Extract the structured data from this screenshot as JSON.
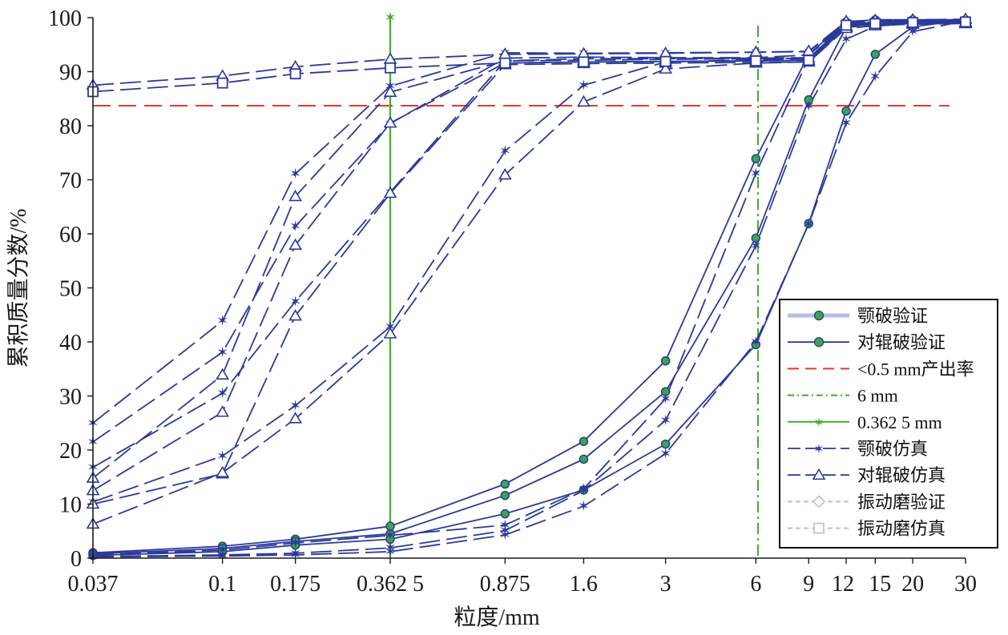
{
  "chart_data": {
    "type": "line",
    "xlabel": "粒度/mm",
    "ylabel": "累积质量分数/%",
    "x_scale": "log",
    "xlim": [
      0.037,
      30
    ],
    "ylim": [
      0,
      100
    ],
    "x_ticks": [
      0.037,
      0.1,
      0.175,
      0.3625,
      0.875,
      1.6,
      3,
      6,
      9,
      12,
      15,
      20,
      30
    ],
    "x_tick_labels": [
      "0.037",
      "0.1",
      "0.175",
      "0.362 5",
      "0.875",
      "1.6",
      "3",
      "6",
      "9",
      "12",
      "15",
      "20",
      "30"
    ],
    "y_ticks": [
      0,
      10,
      20,
      30,
      40,
      50,
      60,
      70,
      80,
      90,
      100
    ],
    "y_tick_labels": [
      "0",
      "10",
      "20",
      "30",
      "40",
      "50",
      "60",
      "70",
      "80",
      "90",
      "100"
    ],
    "legend_position": "bottom-right",
    "legend": [
      "颚破验证",
      "对辊破验证",
      "<0.5 mm产出率",
      "6 mm",
      "0.362 5 mm",
      "颚破仿真",
      "对辊破仿真",
      "振动磨验证",
      "振动磨仿真"
    ],
    "colors": {
      "series": "#2b3a9a",
      "ref_red": "#e8392b",
      "ref_green": "#3fae2a",
      "marker_green": "#3aa846",
      "legend_light": "#b7bde6"
    },
    "reference_lines": [
      {
        "legend": "<0.5 mm产出率",
        "orientation": "horizontal",
        "value": 83.7
      },
      {
        "legend": "6 mm",
        "orientation": "vertical",
        "value": 6.1
      },
      {
        "legend": "0.362 5 mm",
        "orientation": "vertical",
        "value": 0.3625
      }
    ],
    "series": [
      {
        "legend": "颚破验证",
        "dash": "solid",
        "marker": "dot",
        "x": [
          0.037,
          0.1,
          0.175,
          0.3625,
          0.875,
          1.6,
          3,
          6,
          9,
          12,
          15,
          20,
          30
        ],
        "y": [
          1,
          2.2,
          3.5,
          5.9,
          13.7,
          21.6,
          36.5,
          73.9,
          93.2,
          99.2,
          99.6,
          99.6,
          99.6
        ]
      },
      {
        "legend": "对辊破验证",
        "dash": "solid",
        "marker": "dot",
        "x": [
          0.037,
          0.1,
          0.175,
          0.3625,
          0.875,
          1.6,
          3,
          6,
          9,
          12,
          15,
          20,
          30
        ],
        "y": [
          0.8,
          1.8,
          3.1,
          4.5,
          11.6,
          18.3,
          30.8,
          59.2,
          84.8,
          98.2,
          99.2,
          99.4,
          99.6
        ]
      },
      {
        "legend": "对辊破验证",
        "dash": "solid",
        "marker": "dot",
        "x": [
          0.037,
          0.1,
          0.175,
          0.3625,
          0.875,
          1.6,
          3,
          6,
          9,
          12,
          15,
          20,
          30
        ],
        "y": [
          0.5,
          1.2,
          2.4,
          3.5,
          8.2,
          12.6,
          21.1,
          39.5,
          61.9,
          82.7,
          93.2,
          98.3,
          99.6
        ]
      },
      {
        "legend": "颚破仿真",
        "dash": "long-dash",
        "marker": "star",
        "x": [
          0.037,
          0.1,
          0.175,
          0.3625,
          0.875,
          1.6,
          3,
          6,
          9,
          12,
          15,
          20,
          30
        ],
        "y": [
          0.6,
          1.5,
          2.8,
          4.2,
          6.1,
          12.8,
          29.5,
          71.2,
          92.5,
          98.8,
          99.2,
          99.5,
          99.5
        ]
      },
      {
        "legend": "颚破仿真",
        "dash": "long-dash",
        "marker": "star",
        "x": [
          0.037,
          0.1,
          0.175,
          0.3625,
          0.875,
          1.6,
          3,
          6,
          9,
          12,
          15,
          20,
          30
        ],
        "y": [
          0.3,
          0.6,
          0.9,
          1.9,
          5.1,
          12.5,
          25.5,
          57.8,
          83.6,
          96.0,
          98.4,
          99.0,
          99.5
        ]
      },
      {
        "legend": "颚破仿真",
        "dash": "long-dash",
        "marker": "star",
        "x": [
          0.037,
          0.1,
          0.175,
          0.3625,
          0.875,
          1.6,
          3,
          6,
          9,
          12,
          15,
          20,
          30
        ],
        "y": [
          0.2,
          0.4,
          0.6,
          1.2,
          4.3,
          9.6,
          19.3,
          40.0,
          61.8,
          80.5,
          89.1,
          97.4,
          99.4
        ]
      },
      {
        "legend": "颚破仿真",
        "dash": "long-dash",
        "marker": "star",
        "x": [
          0.037,
          0.1,
          0.175,
          0.3625,
          0.875,
          1.6,
          3,
          6,
          9,
          12,
          15,
          20,
          30
        ],
        "y": [
          25.0,
          43.9,
          71.1,
          87.3,
          93.5,
          93.4,
          93.5,
          93.6,
          93.7,
          99.1,
          99.4,
          99.5,
          99.6
        ]
      },
      {
        "legend": "颚破仿真",
        "dash": "long-dash",
        "marker": "star",
        "x": [
          0.037,
          0.1,
          0.175,
          0.3625,
          0.875,
          1.6,
          3,
          6,
          9,
          12,
          15,
          20,
          30
        ],
        "y": [
          21.5,
          38.1,
          61.4,
          80.4,
          92.5,
          92.7,
          92.6,
          92.6,
          93.1,
          98.9,
          99.3,
          99.4,
          99.5
        ]
      },
      {
        "legend": "颚破仿真",
        "dash": "long-dash",
        "marker": "star",
        "x": [
          0.037,
          0.1,
          0.175,
          0.3625,
          0.875,
          1.6,
          3,
          6,
          9,
          12,
          15,
          20,
          30
        ],
        "y": [
          16.8,
          30.5,
          47.5,
          67.7,
          92.0,
          92.4,
          92.4,
          92.5,
          92.6,
          98.7,
          99.1,
          99.3,
          99.4
        ]
      },
      {
        "legend": "颚破仿真",
        "dash": "long-dash",
        "marker": "star",
        "x": [
          0.037,
          0.1,
          0.175,
          0.3625,
          0.875,
          1.6,
          3,
          6,
          9,
          12,
          15,
          20,
          30
        ],
        "y": [
          10.4,
          18.9,
          28.2,
          42.8,
          75.3,
          87.5,
          91.8,
          92.2,
          92.4,
          98.6,
          99.0,
          99.2,
          99.3
        ]
      },
      {
        "legend": "对辊破仿真",
        "dash": "long-dash",
        "marker": "triangle",
        "x": [
          0.037,
          0.1,
          0.175,
          0.3625,
          0.875,
          1.6,
          3,
          6,
          9,
          12,
          15,
          20,
          30
        ],
        "y": [
          14.8,
          33.9,
          66.9,
          86.2,
          92.0,
          92.1,
          92.3,
          92.4,
          92.5,
          98.5,
          98.9,
          99.1,
          99.2
        ]
      },
      {
        "legend": "对辊破仿真",
        "dash": "long-dash",
        "marker": "triangle",
        "x": [
          0.037,
          0.1,
          0.175,
          0.3625,
          0.875,
          1.6,
          3,
          6,
          9,
          12,
          15,
          20,
          30
        ],
        "y": [
          12.5,
          27.0,
          57.9,
          80.5,
          91.6,
          91.8,
          91.9,
          92.0,
          92.1,
          98.3,
          98.8,
          99.0,
          99.1
        ]
      },
      {
        "legend": "对辊破仿真",
        "dash": "long-dash",
        "marker": "triangle",
        "x": [
          0.037,
          0.1,
          0.175,
          0.3625,
          0.875,
          1.6,
          3,
          6,
          9,
          12,
          15,
          20,
          30
        ],
        "y": [
          10.0,
          15.6,
          44.8,
          67.5,
          91.3,
          91.5,
          91.6,
          91.7,
          91.8,
          98.2,
          98.6,
          98.9,
          99.0
        ]
      },
      {
        "legend": "对辊破仿真",
        "dash": "long-dash",
        "marker": "triangle",
        "x": [
          0.037,
          0.1,
          0.175,
          0.3625,
          0.875,
          1.6,
          3,
          6,
          9,
          12,
          15,
          20,
          30
        ],
        "y": [
          6.3,
          15.8,
          25.8,
          41.5,
          70.9,
          84.4,
          90.5,
          91.6,
          91.8,
          98.0,
          98.5,
          98.8,
          98.9
        ]
      },
      {
        "legend": "对辊破仿真",
        "dash": "long-dash",
        "marker": "triangle",
        "x": [
          0.037,
          0.1,
          0.175,
          0.3625,
          0.875,
          1.6,
          3,
          6,
          9,
          12,
          15,
          20,
          30
        ],
        "y": [
          87.5,
          89.2,
          90.9,
          92.3,
          93.2,
          93.3,
          93.4,
          93.6,
          93.8,
          99.3,
          99.5,
          99.6,
          99.7
        ]
      },
      {
        "legend": "振动磨仿真",
        "dash": "long-dash",
        "marker": "square",
        "x": [
          0.037,
          0.1,
          0.175,
          0.3625,
          0.875,
          1.6,
          3,
          6,
          9,
          12,
          15,
          20,
          30
        ],
        "y": [
          86.3,
          87.9,
          89.6,
          90.7,
          91.6,
          91.8,
          91.9,
          92.0,
          92.1,
          98.6,
          98.9,
          99.1,
          99.2
        ]
      }
    ]
  }
}
